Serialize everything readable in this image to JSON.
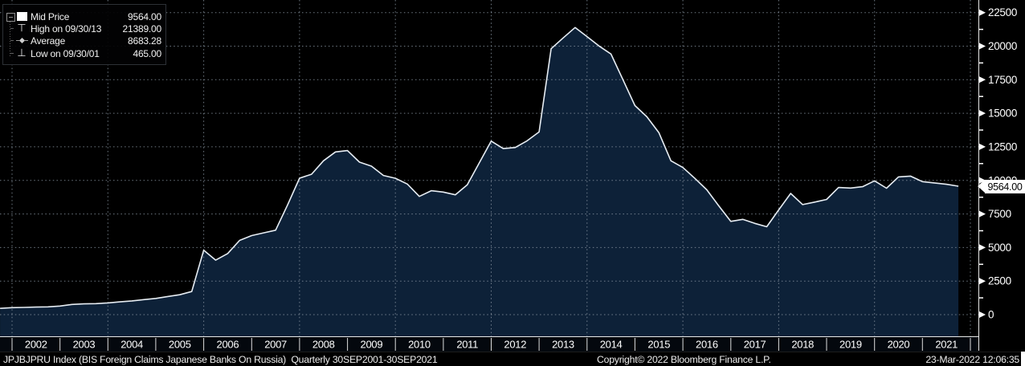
{
  "colors": {
    "background": "#000000",
    "area_fill": "#0d2138",
    "line": "#e7edf3",
    "grid": "#8a96a3",
    "frame": "#e8e8e8",
    "axis_text": "#ffffff",
    "year_band_bg": "#04080e",
    "price_tag_bg": "#ffffff",
    "price_tag_text": "#000000"
  },
  "legend": {
    "items": [
      {
        "icon": "mid-price-square",
        "label": "Mid Price",
        "value": "9564.00"
      },
      {
        "icon": "high-whisker",
        "label": "High on 09/30/13",
        "value": "21389.00"
      },
      {
        "icon": "average-diamond",
        "label": "Average",
        "value": "8683.28"
      },
      {
        "icon": "low-whisker",
        "label": "Low on 09/30/01",
        "value": "465.00"
      }
    ]
  },
  "y_axis": {
    "ticks": [
      0,
      2500,
      5000,
      7500,
      10000,
      12500,
      15000,
      17500,
      20000,
      22500
    ],
    "last_price_label": "9564.00"
  },
  "x_axis": {
    "years": [
      "2002",
      "2003",
      "2004",
      "2005",
      "2006",
      "2007",
      "2008",
      "2009",
      "2010",
      "2011",
      "2012",
      "2013",
      "2014",
      "2015",
      "2016",
      "2017",
      "2018",
      "2019",
      "2020",
      "2021"
    ]
  },
  "footer": {
    "left": "JPJBJPRU Index (BIS Foreign Claims Japanese Banks On Russia)  Quarterly 30SEP2001-30SEP2021",
    "copyright": "Copyright© 2022 Bloomberg Finance L.P.",
    "timestamp": "23-Mar-2022 12:06:35"
  },
  "chart_data": {
    "type": "area",
    "title": "JPJBJPRU Index (BIS Foreign Claims Japanese Banks On Russia)",
    "period": "Quarterly 30SEP2001-30SEP2021",
    "ylim": [
      0,
      22500
    ],
    "y_tick_step": 2500,
    "grid": true,
    "legend_position": "top-left",
    "stats": {
      "mid": 9564.0,
      "high": 21389.0,
      "high_date": "09/30/13",
      "average": 8683.28,
      "low": 465.0,
      "low_date": "09/30/01"
    },
    "x": [
      "2001-09-30",
      "2001-12-31",
      "2002-03-31",
      "2002-06-30",
      "2002-09-30",
      "2002-12-31",
      "2003-03-31",
      "2003-06-30",
      "2003-09-30",
      "2003-12-31",
      "2004-03-31",
      "2004-06-30",
      "2004-09-30",
      "2004-12-31",
      "2005-03-31",
      "2005-06-30",
      "2005-09-30",
      "2005-12-31",
      "2006-03-31",
      "2006-06-30",
      "2006-09-30",
      "2006-12-31",
      "2007-03-31",
      "2007-06-30",
      "2007-09-30",
      "2007-12-31",
      "2008-03-31",
      "2008-06-30",
      "2008-09-30",
      "2008-12-31",
      "2009-03-31",
      "2009-06-30",
      "2009-09-30",
      "2009-12-31",
      "2010-03-31",
      "2010-06-30",
      "2010-09-30",
      "2010-12-31",
      "2011-03-31",
      "2011-06-30",
      "2011-09-30",
      "2011-12-31",
      "2012-03-31",
      "2012-06-30",
      "2012-09-30",
      "2012-12-31",
      "2013-03-31",
      "2013-06-30",
      "2013-09-30",
      "2013-12-31",
      "2014-03-31",
      "2014-06-30",
      "2014-09-30",
      "2014-12-31",
      "2015-03-31",
      "2015-06-30",
      "2015-09-30",
      "2015-12-31",
      "2016-03-31",
      "2016-06-30",
      "2016-09-30",
      "2016-12-31",
      "2017-03-31",
      "2017-06-30",
      "2017-09-30",
      "2017-12-31",
      "2018-03-31",
      "2018-06-30",
      "2018-09-30",
      "2018-12-31",
      "2019-03-31",
      "2019-06-30",
      "2019-09-30",
      "2019-12-31",
      "2020-03-31",
      "2020-06-30",
      "2020-09-30",
      "2020-12-31",
      "2021-03-31",
      "2021-06-30",
      "2021-09-30"
    ],
    "values": [
      465,
      520,
      540,
      560,
      580,
      640,
      760,
      800,
      820,
      875,
      950,
      1020,
      1120,
      1210,
      1350,
      1480,
      1720,
      4800,
      4060,
      4550,
      5530,
      5890,
      6090,
      6290,
      8176,
      10163,
      10460,
      11460,
      12120,
      12220,
      11360,
      11060,
      10370,
      10160,
      9730,
      8810,
      9230,
      9130,
      8930,
      9670,
      11300,
      12930,
      12370,
      12450,
      12950,
      13610,
      19810,
      20610,
      21389,
      20710,
      20010,
      19415,
      17500,
      15575,
      14740,
      13550,
      11460,
      10960,
      10150,
      9300,
      8100,
      6950,
      7100,
      6800,
      6550,
      7800,
      9030,
      8200,
      8380,
      8580,
      9470,
      9430,
      9530,
      9970,
      9420,
      10260,
      10320,
      9910,
      9810,
      9710,
      9564
    ]
  }
}
